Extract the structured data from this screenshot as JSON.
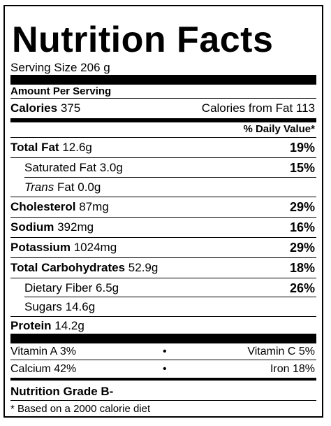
{
  "title": "Nutrition Facts",
  "serving_size": "Serving Size 206 g",
  "amount_per_serving": "Amount Per Serving",
  "calories": {
    "label": "Calories",
    "value": "375",
    "from_fat": "Calories from Fat 113"
  },
  "daily_value_header": "% Daily Value*",
  "nutrients": {
    "total_fat": {
      "label": "Total Fat",
      "amount": "12.6g",
      "pct": "19%"
    },
    "saturated_fat": {
      "label": "Saturated Fat",
      "amount": "3.0g",
      "pct": "15%"
    },
    "trans_fat": {
      "label_italic": "Trans",
      "label": "Fat",
      "amount": "0.0g"
    },
    "cholesterol": {
      "label": "Cholesterol",
      "amount": "87mg",
      "pct": "29%"
    },
    "sodium": {
      "label": "Sodium",
      "amount": "392mg",
      "pct": "16%"
    },
    "potassium": {
      "label": "Potassium",
      "amount": "1024mg",
      "pct": "29%"
    },
    "total_carbs": {
      "label": "Total Carbohydrates",
      "amount": "52.9g",
      "pct": "18%"
    },
    "dietary_fiber": {
      "label": "Dietary Fiber",
      "amount": "6.5g",
      "pct": "26%"
    },
    "sugars": {
      "label": "Sugars",
      "amount": "14.6g"
    },
    "protein": {
      "label": "Protein",
      "amount": "14.2g"
    }
  },
  "vitamins": {
    "vitamin_a": "Vitamin A 3%",
    "vitamin_c": "Vitamin C 5%",
    "calcium": "Calcium 42%",
    "iron": "Iron 18%",
    "bullet": "•"
  },
  "grade": "Nutrition Grade B-",
  "footnote": "* Based on a 2000 calorie diet"
}
